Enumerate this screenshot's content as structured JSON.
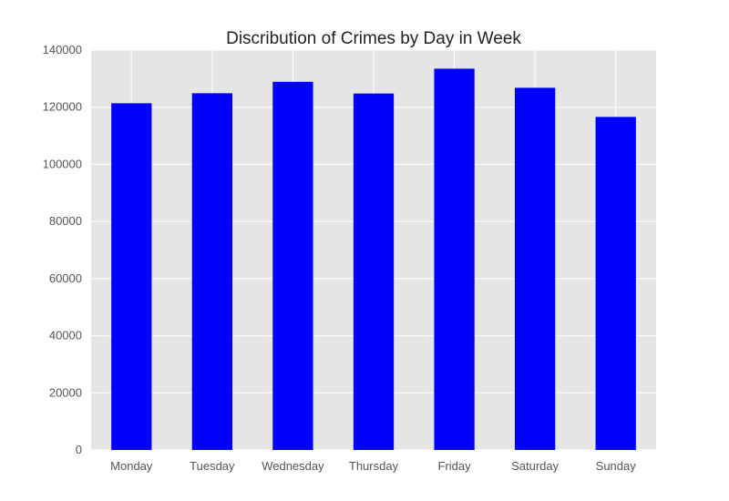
{
  "chart_data": {
    "type": "bar",
    "title": "Discribution of Crimes by Day in Week",
    "xlabel": "",
    "ylabel": "",
    "categories": [
      "Monday",
      "Tuesday",
      "Wednesday",
      "Thursday",
      "Friday",
      "Saturday",
      "Sunday"
    ],
    "values": [
      121400,
      124900,
      128900,
      124800,
      133500,
      126800,
      116600
    ],
    "ylim": [
      0,
      140000
    ],
    "yticks": [
      0,
      20000,
      40000,
      60000,
      80000,
      100000,
      120000,
      140000
    ],
    "grid": true,
    "legend": "none",
    "colors": {
      "bar": "#0000ff",
      "background": "#e5e5e5",
      "grid": "#ffffff"
    }
  }
}
